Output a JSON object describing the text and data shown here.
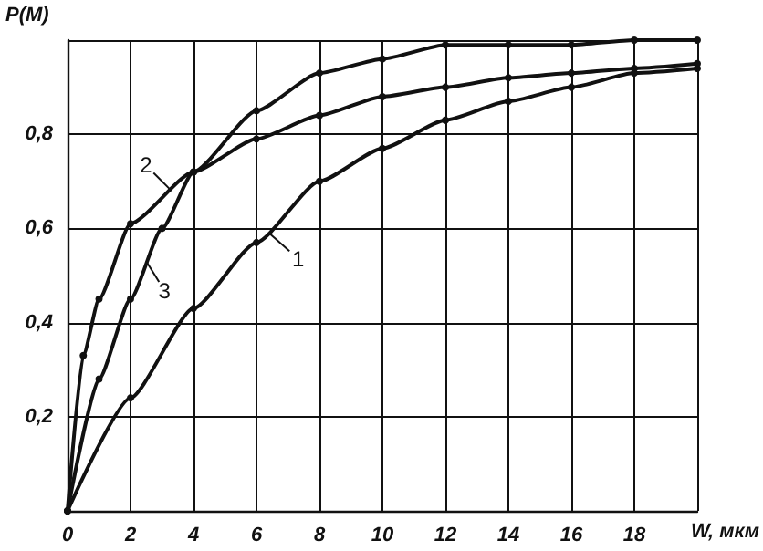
{
  "chart_data": {
    "type": "line",
    "xlabel": "W, мкм",
    "ylabel": "P(M)",
    "xlim": [
      0,
      20
    ],
    "xticks": [
      0,
      2,
      4,
      6,
      8,
      10,
      12,
      14,
      16,
      18,
      {
        "value": 20,
        "label": null
      }
    ],
    "ylim": [
      0,
      1
    ],
    "yticks": [
      {
        "value": 0,
        "label": null
      },
      {
        "value": 0.2,
        "label": "0,2"
      },
      {
        "value": 0.4,
        "label": "0,4"
      },
      {
        "value": 0.6,
        "label": "0,6"
      },
      {
        "value": 0.8,
        "label": "0,8"
      },
      {
        "value": 1,
        "label": null
      }
    ],
    "grid": true,
    "marker": "circle",
    "line_style": "solid",
    "series": [
      {
        "color": "#111111",
        "x": [
          0,
          2,
          4,
          6,
          8,
          10,
          12,
          14,
          16,
          18,
          20
        ],
        "values": [
          0,
          0.24,
          0.43,
          0.57,
          0.7,
          0.77,
          0.83,
          0.87,
          0.9,
          0.93,
          0.94
        ]
      },
      {
        "color": "#111111",
        "x": [
          0,
          0.5,
          1,
          2,
          4,
          6,
          8,
          10,
          12,
          14,
          16,
          18,
          20
        ],
        "values": [
          0,
          0.33,
          0.45,
          0.61,
          0.72,
          0.79,
          0.84,
          0.88,
          0.9,
          0.92,
          0.93,
          0.94,
          0.95
        ]
      },
      {
        "color": "#111111",
        "x": [
          0,
          1,
          2,
          3,
          4,
          6,
          8,
          10,
          12,
          14,
          16,
          18,
          20
        ],
        "values": [
          0,
          0.28,
          0.45,
          0.6,
          0.72,
          0.85,
          0.93,
          0.96,
          0.99,
          0.99,
          0.99,
          1,
          1
        ]
      }
    ],
    "annotations": [
      {
        "text": "1",
        "x": 6.4,
        "y": 0.59
      },
      {
        "text": "2",
        "x": 3.3,
        "y": 0.68
      },
      {
        "text": "3",
        "x": 2.5,
        "y": 0.53
      }
    ]
  }
}
